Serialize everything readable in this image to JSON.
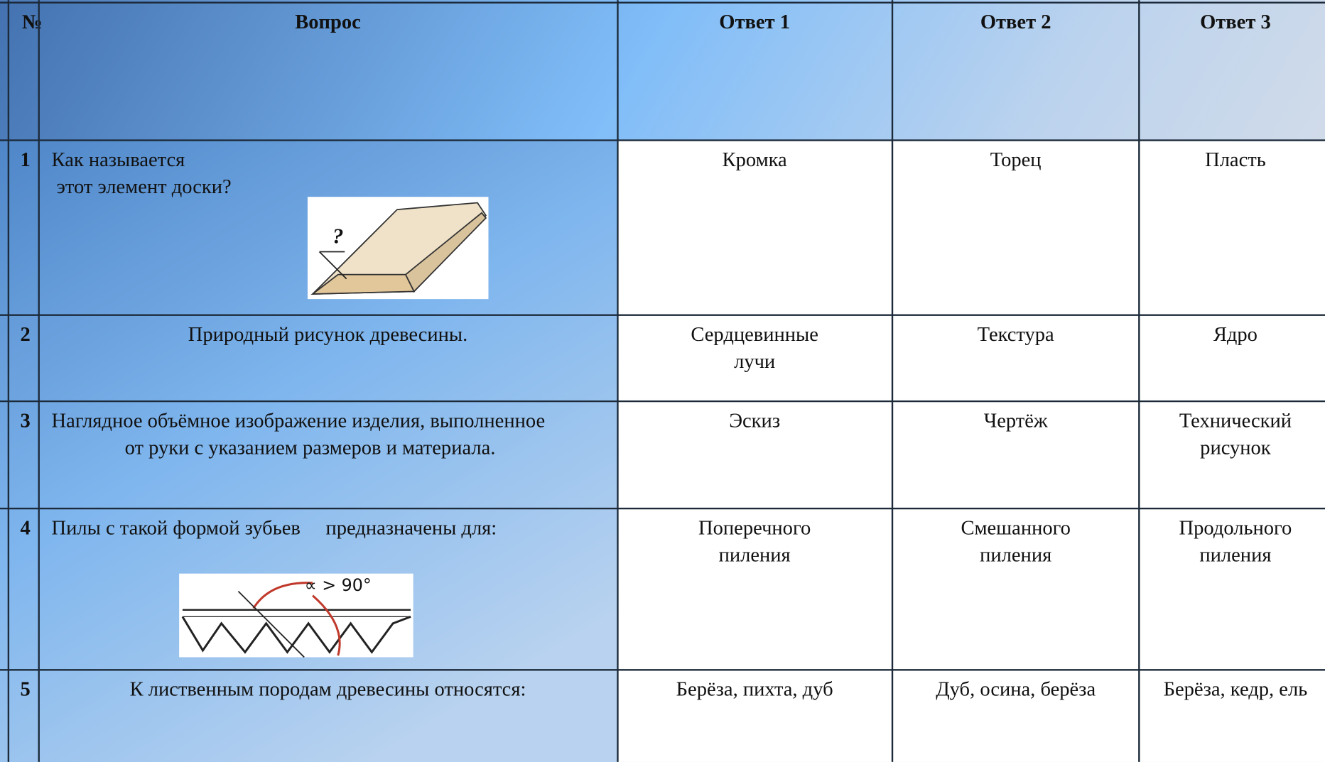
{
  "header": {
    "number": "№",
    "question": "Вопрос",
    "answers": [
      "Ответ 1",
      "Ответ 2",
      "Ответ 3"
    ]
  },
  "rows": [
    {
      "number": "1",
      "question": [
        "Как называется",
        " этот элемент доски?"
      ],
      "answers": [
        [
          "Кромка"
        ],
        [
          "Торец"
        ],
        [
          "Пласть"
        ]
      ]
    },
    {
      "number": "2",
      "question": [
        "Природный рисунок древесины."
      ],
      "answers": [
        [
          "Сердцевинные",
          "лучи"
        ],
        [
          "Текстура"
        ],
        [
          "Ядро"
        ]
      ]
    },
    {
      "number": "3",
      "question": [
        "Наглядное объёмное изображение изделия, выполненное",
        "от руки с указанием размеров и материала."
      ],
      "answers": [
        [
          "Эскиз"
        ],
        [
          "Чертёж"
        ],
        [
          "Технический",
          "рисунок"
        ]
      ]
    },
    {
      "number": "4",
      "question": [
        "Пилы с такой формой зубьев     предназначены для:"
      ],
      "answers": [
        [
          "Поперечного",
          "пиления"
        ],
        [
          "Смешанного",
          "пиления"
        ],
        [
          "Продольного",
          "пиления"
        ]
      ]
    },
    {
      "number": "5",
      "question": [
        "К лиственным породам древесины относятся:"
      ],
      "answers": [
        [
          "Берёза, пихта, дуб"
        ],
        [
          "Дуб, осина, берёза"
        ],
        [
          "Берёза, кедр, ель"
        ]
      ]
    }
  ],
  "figures": [
    {
      "label": "?"
    },
    {
      "label": "∝ > 90°"
    }
  ]
}
